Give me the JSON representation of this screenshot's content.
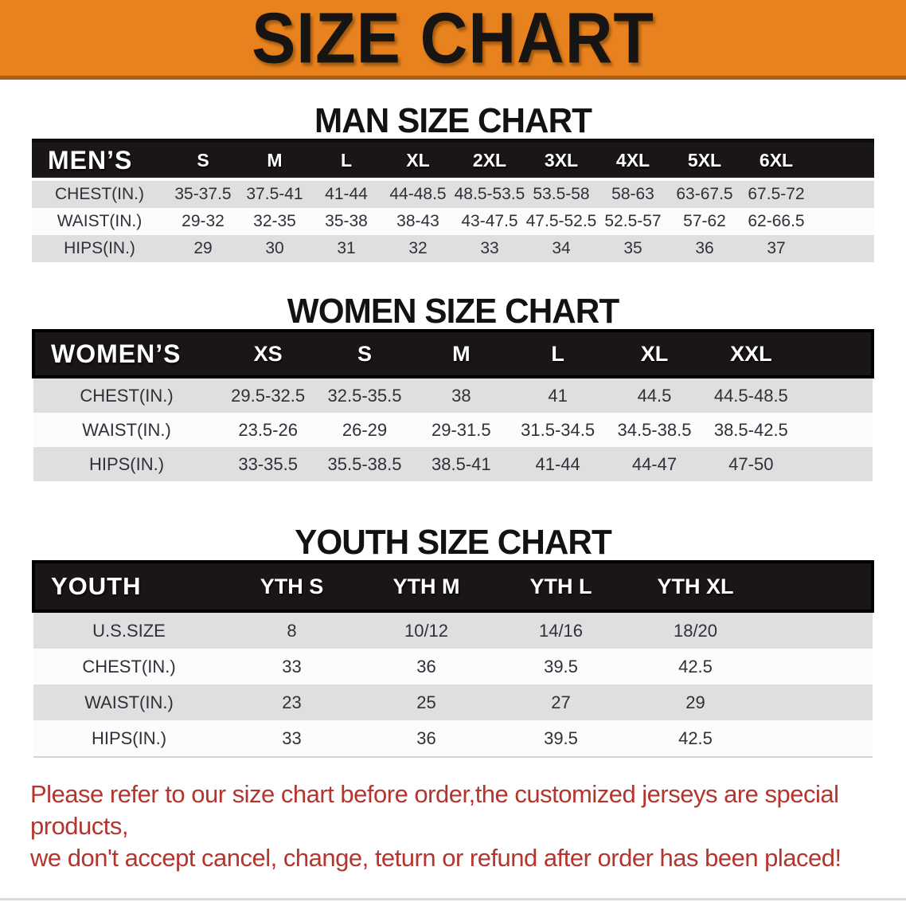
{
  "banner": {
    "title": "SIZE CHART"
  },
  "colors": {
    "banner_bg": "#E8821E",
    "header_bar": "#1B1616",
    "stripe_row": "#DFDFDF",
    "footer_text": "#B4352E"
  },
  "sections": [
    {
      "id": "men",
      "heading": "MAN SIZE CHART",
      "table": {
        "label": "MEN’S",
        "sizes": [
          "S",
          "M",
          "L",
          "XL",
          "2XL",
          "3XL",
          "4XL",
          "5XL",
          "6XL"
        ],
        "rows": [
          {
            "label": "CHEST(IN.)",
            "values": [
              "35-37.5",
              "37.5-41",
              "41-44",
              "44-48.5",
              "48.5-53.5",
              "53.5-58",
              "58-63",
              "63-67.5",
              "67.5-72"
            ]
          },
          {
            "label": "WAIST(IN.)",
            "values": [
              "29-32",
              "32-35",
              "35-38",
              "38-43",
              "43-47.5",
              "47.5-52.5",
              "52.5-57",
              "57-62",
              "62-66.5"
            ]
          },
          {
            "label": "HIPS(IN.)",
            "values": [
              "29",
              "30",
              "31",
              "32",
              "33",
              "34",
              "35",
              "36",
              "37"
            ]
          }
        ]
      }
    },
    {
      "id": "women",
      "heading": "WOMEN SIZE CHART",
      "table": {
        "label": "WOMEN’S",
        "sizes": [
          "XS",
          "S",
          "M",
          "L",
          "XL",
          "XXL"
        ],
        "rows": [
          {
            "label": "CHEST(IN.)",
            "values": [
              "29.5-32.5",
              "32.5-35.5",
              "38",
              "41",
              "44.5",
              "44.5-48.5"
            ]
          },
          {
            "label": "WAIST(IN.)",
            "values": [
              "23.5-26",
              "26-29",
              "29-31.5",
              "31.5-34.5",
              "34.5-38.5",
              "38.5-42.5"
            ]
          },
          {
            "label": "HIPS(IN.)",
            "values": [
              "33-35.5",
              "35.5-38.5",
              "38.5-41",
              "41-44",
              "44-47",
              "47-50"
            ]
          }
        ]
      }
    },
    {
      "id": "youth",
      "heading": "YOUTH SIZE CHART",
      "table": {
        "label": "YOUTH",
        "sizes": [
          "YTH S",
          "YTH M",
          "YTH L",
          "YTH XL"
        ],
        "rows": [
          {
            "label": "U.S.SIZE",
            "values": [
              "8",
              "10/12",
              "14/16",
              "18/20"
            ]
          },
          {
            "label": "CHEST(IN.)",
            "values": [
              "33",
              "36",
              "39.5",
              "42.5"
            ]
          },
          {
            "label": "WAIST(IN.)",
            "values": [
              "23",
              "25",
              "27",
              "29"
            ]
          },
          {
            "label": "HIPS(IN.)",
            "values": [
              "33",
              "36",
              "39.5",
              "42.5"
            ]
          }
        ]
      }
    }
  ],
  "footer": {
    "line1": "Please refer to our size chart before order,the customized jerseys are special products,",
    "line2": "we don't accept cancel, change, teturn or refund after order has been placed!"
  }
}
